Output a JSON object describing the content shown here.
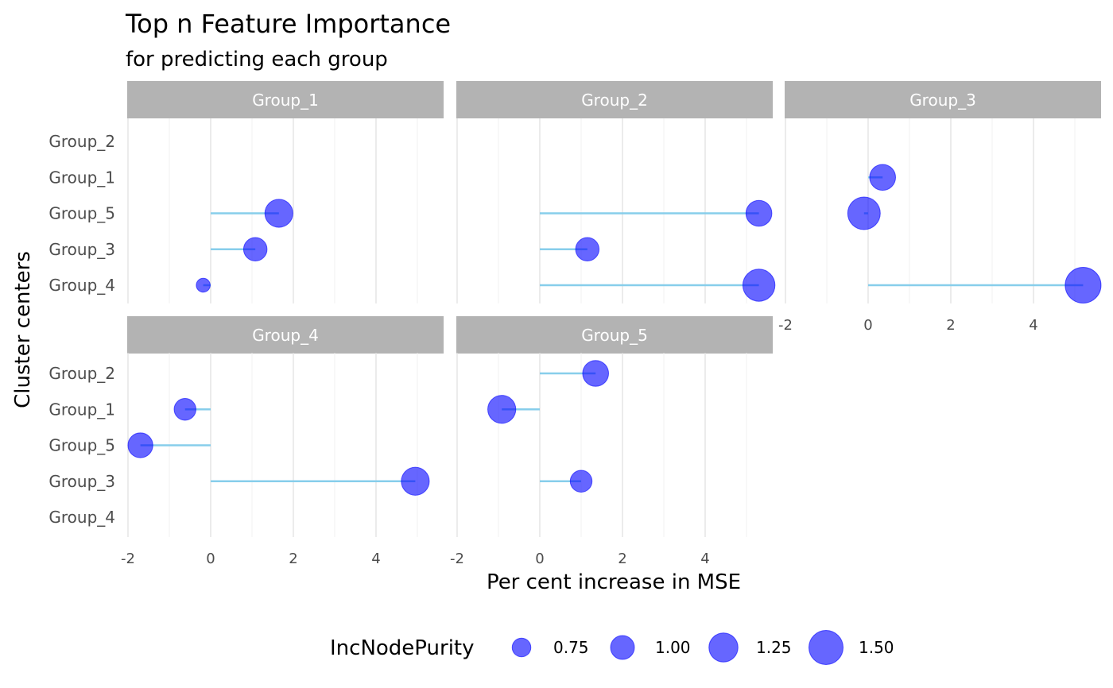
{
  "chart_data": {
    "type": "scatter",
    "style": "lollipop faceted",
    "title": "Top n Feature Importance",
    "subtitle": "for predicting each group",
    "xlabel": "Per cent increase in MSE",
    "ylabel": "Cluster centers",
    "xlim": [
      -2,
      5.5
    ],
    "x_ticks": [
      -2,
      0,
      2,
      4
    ],
    "y_categories": [
      "Group_2",
      "Group_1",
      "Group_5",
      "Group_3",
      "Group_4"
    ],
    "point_color": "#0000ff",
    "segment_color": "#87ceeb",
    "strip_color": "#b3b3b3",
    "grid": true,
    "legend": {
      "title": "IncNodePurity",
      "position": "bottom",
      "entries": [
        {
          "label": "0.75",
          "size": 0.75
        },
        {
          "label": "1.00",
          "size": 1.0
        },
        {
          "label": "1.25",
          "size": 1.25
        },
        {
          "label": "1.50",
          "size": 1.5
        }
      ]
    },
    "facets": [
      {
        "name": "Group_1",
        "points": [
          {
            "category": "Group_5",
            "value": 1.65,
            "size": 1.2
          },
          {
            "category": "Group_3",
            "value": 1.08,
            "size": 0.98
          },
          {
            "category": "Group_4",
            "value": -0.18,
            "size": 0.52
          }
        ]
      },
      {
        "name": "Group_2",
        "points": [
          {
            "category": "Group_5",
            "value": 5.3,
            "size": 1.1
          },
          {
            "category": "Group_3",
            "value": 1.15,
            "size": 0.98
          },
          {
            "category": "Group_4",
            "value": 5.3,
            "size": 1.4
          }
        ]
      },
      {
        "name": "Group_3",
        "points": [
          {
            "category": "Group_1",
            "value": 0.35,
            "size": 1.1
          },
          {
            "category": "Group_5",
            "value": -0.1,
            "size": 1.42
          },
          {
            "category": "Group_4",
            "value": 5.2,
            "size": 1.58
          }
        ]
      },
      {
        "name": "Group_4",
        "points": [
          {
            "category": "Group_1",
            "value": -0.62,
            "size": 0.9
          },
          {
            "category": "Group_5",
            "value": -1.7,
            "size": 1.05
          },
          {
            "category": "Group_3",
            "value": 4.95,
            "size": 1.2
          }
        ]
      },
      {
        "name": "Group_5",
        "points": [
          {
            "category": "Group_2",
            "value": 1.35,
            "size": 1.1
          },
          {
            "category": "Group_1",
            "value": -0.92,
            "size": 1.2
          },
          {
            "category": "Group_3",
            "value": 1.0,
            "size": 0.9
          }
        ]
      }
    ]
  }
}
